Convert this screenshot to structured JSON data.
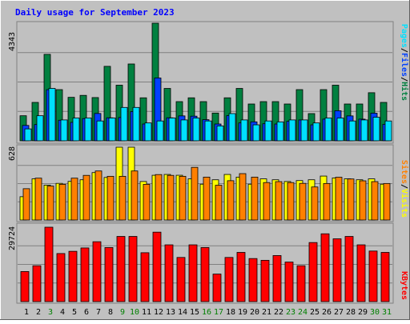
{
  "title": "Daily usage for September 2023",
  "colors": {
    "background": "#c0c0c0",
    "title": "#0000ff",
    "hits": "#008040",
    "files": "#0040ff",
    "pages": "#00e0ff",
    "visits": "#ffff00",
    "sites": "#ff8000",
    "kbytes": "#ff0000",
    "gridline": "#808080",
    "day_weekday": "#000000",
    "day_weekend": "#008000"
  },
  "labels": {
    "top_right_pages": "Pages",
    "top_right_files": "Files",
    "top_right_hits": "Hits",
    "mid_right_sites": "Sites",
    "mid_right_visits": "Visits",
    "bottom_right_kbytes": "KBytes",
    "sep": "/"
  },
  "chart_data": [
    {
      "type": "bar",
      "panel": "hits-files-pages",
      "ymax_label": "4343",
      "ylim": [
        0,
        4343
      ],
      "categories": [
        "1",
        "2",
        "3",
        "4",
        "5",
        "6",
        "7",
        "8",
        "9",
        "10",
        "11",
        "12",
        "13",
        "14",
        "15",
        "16",
        "17",
        "18",
        "19",
        "20",
        "21",
        "22",
        "23",
        "24",
        "25",
        "26",
        "27",
        "28",
        "29",
        "30",
        "31"
      ],
      "series": [
        {
          "name": "Hits",
          "values": [
            926,
            1418,
            3193,
            1890,
            1606,
            1678,
            1597,
            2750,
            2054,
            2837,
            1588,
            4343,
            1934,
            1447,
            1588,
            1447,
            1025,
            1588,
            1934,
            1359,
            1447,
            1447,
            1359,
            1890,
            1005,
            1890,
            2054,
            1359,
            1359,
            1776,
            1418
          ]
        },
        {
          "name": "Files",
          "values": [
            568,
            600,
            1888,
            760,
            680,
            820,
            1010,
            850,
            860,
            1080,
            620,
            2320,
            850,
            920,
            910,
            780,
            620,
            930,
            660,
            700,
            630,
            620,
            720,
            770,
            590,
            800,
            1110,
            920,
            800,
            1020,
            610
          ]
        },
        {
          "name": "Pages",
          "values": [
            440,
            926,
            1935,
            771,
            842,
            842,
            733,
            842,
            1232,
            1232,
            660,
            733,
            842,
            771,
            842,
            733,
            550,
            1005,
            771,
            590,
            733,
            699,
            771,
            771,
            660,
            842,
            842,
            733,
            771,
            871,
            733
          ]
        }
      ]
    },
    {
      "type": "bar",
      "panel": "visits-sites",
      "ymax_label": "628",
      "ylim": [
        0,
        628
      ],
      "categories": [
        "1",
        "2",
        "3",
        "4",
        "5",
        "6",
        "7",
        "8",
        "9",
        "10",
        "11",
        "12",
        "13",
        "14",
        "15",
        "16",
        "17",
        "18",
        "19",
        "20",
        "21",
        "22",
        "23",
        "24",
        "25",
        "26",
        "27",
        "28",
        "29",
        "30",
        "31"
      ],
      "series": [
        {
          "name": "Visits",
          "values": [
            201,
            355,
            301,
            316,
            333,
            347,
            409,
            367,
            628,
            628,
            332,
            386,
            393,
            386,
            355,
            309,
            347,
            393,
            370,
            309,
            355,
            347,
            332,
            340,
            347,
            379,
            363,
            355,
            347,
            355,
            309
          ]
        },
        {
          "name": "Sites",
          "values": [
            270,
            361,
            293,
            308,
            361,
            385,
            423,
            377,
            377,
            423,
            308,
            392,
            385,
            377,
            454,
            370,
            300,
            339,
            400,
            370,
            323,
            331,
            323,
            316,
            285,
            315,
            369,
            354,
            338,
            331,
            315
          ]
        }
      ]
    },
    {
      "type": "bar",
      "panel": "kbytes",
      "ymax_label": "29724",
      "ylim": [
        0,
        29724
      ],
      "categories": [
        "1",
        "2",
        "3",
        "4",
        "5",
        "6",
        "7",
        "8",
        "9",
        "10",
        "11",
        "12",
        "13",
        "14",
        "15",
        "16",
        "17",
        "18",
        "19",
        "20",
        "21",
        "22",
        "23",
        "24",
        "25",
        "26",
        "27",
        "28",
        "29",
        "30",
        "31"
      ],
      "series": [
        {
          "name": "KBytes",
          "values": [
            12010,
            14340,
            29724,
            19200,
            20090,
            21440,
            23930,
            21600,
            26040,
            26040,
            19530,
            27750,
            22680,
            17640,
            22680,
            21600,
            11000,
            17640,
            19660,
            17200,
            16500,
            18400,
            15800,
            14340,
            23600,
            27090,
            25090,
            26040,
            22680,
            20200,
            19660
          ]
        }
      ]
    }
  ],
  "days": [
    {
      "label": "1",
      "weekend": false
    },
    {
      "label": "2",
      "weekend": false
    },
    {
      "label": "3",
      "weekend": true
    },
    {
      "label": "4",
      "weekend": false
    },
    {
      "label": "5",
      "weekend": false
    },
    {
      "label": "6",
      "weekend": false
    },
    {
      "label": "7",
      "weekend": false
    },
    {
      "label": "8",
      "weekend": false
    },
    {
      "label": "9",
      "weekend": true
    },
    {
      "label": "10",
      "weekend": true
    },
    {
      "label": "11",
      "weekend": false
    },
    {
      "label": "12",
      "weekend": false
    },
    {
      "label": "13",
      "weekend": false
    },
    {
      "label": "14",
      "weekend": false
    },
    {
      "label": "15",
      "weekend": false
    },
    {
      "label": "16",
      "weekend": true
    },
    {
      "label": "17",
      "weekend": true
    },
    {
      "label": "18",
      "weekend": false
    },
    {
      "label": "19",
      "weekend": false
    },
    {
      "label": "20",
      "weekend": false
    },
    {
      "label": "21",
      "weekend": false
    },
    {
      "label": "22",
      "weekend": false
    },
    {
      "label": "23",
      "weekend": true
    },
    {
      "label": "24",
      "weekend": true
    },
    {
      "label": "25",
      "weekend": false
    },
    {
      "label": "26",
      "weekend": false
    },
    {
      "label": "27",
      "weekend": false
    },
    {
      "label": "28",
      "weekend": false
    },
    {
      "label": "29",
      "weekend": false
    },
    {
      "label": "30",
      "weekend": true
    },
    {
      "label": "31",
      "weekend": true
    }
  ]
}
